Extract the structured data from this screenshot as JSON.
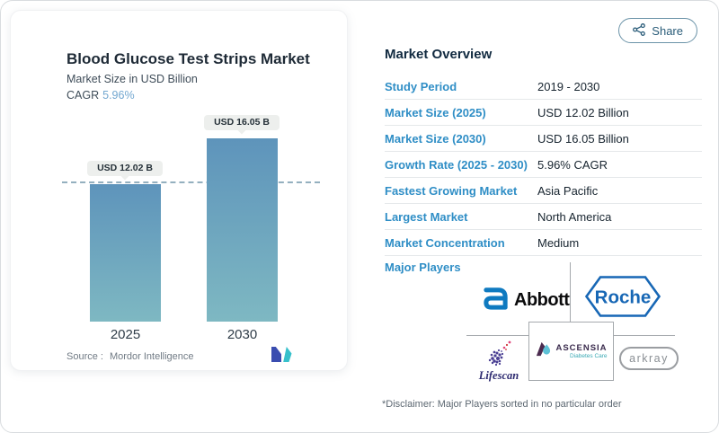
{
  "share": {
    "label": "Share"
  },
  "chart_card": {
    "title": "Blood Glucose Test Strips Market",
    "subtitle": "Market Size in USD Billion",
    "cagr_label": "CAGR",
    "cagr_value": "5.96%",
    "source_prefix": "Source :",
    "source_name": "Mordor Intelligence"
  },
  "chart_data": {
    "type": "bar",
    "title": "Blood Glucose Test Strips Market",
    "ylabel": "Market Size in USD Billion",
    "categories": [
      "2025",
      "2030"
    ],
    "values": [
      12.02,
      16.05
    ],
    "value_labels": [
      "USD 12.02 B",
      "USD 16.05 B"
    ],
    "reference_line": 12.02,
    "reference_line_style": "dashed",
    "bar_gradient_top": "#5e94bb",
    "bar_gradient_bottom": "#7eb8c2",
    "grid": false,
    "legend": false
  },
  "overview": {
    "heading": "Market Overview",
    "rows": [
      {
        "label": "Study Period",
        "value": "2019 - 2030"
      },
      {
        "label": "Market Size (2025)",
        "value": "USD 12.02 Billion"
      },
      {
        "label": "Market Size (2030)",
        "value": "USD 16.05 Billion"
      },
      {
        "label": "Growth Rate (2025 - 2030)",
        "value": "5.96% CAGR"
      },
      {
        "label": "Fastest Growing Market",
        "value": "Asia Pacific"
      },
      {
        "label": "Largest Market",
        "value": "North America"
      },
      {
        "label": "Market Concentration",
        "value": "Medium"
      }
    ],
    "major_players_label": "Major Players",
    "players": {
      "abbott": {
        "name": "Abbott"
      },
      "roche": {
        "name": "Roche"
      },
      "lifescan": {
        "name": "Lifescan"
      },
      "ascensia": {
        "name": "ASCENSIA",
        "subtitle": "Diabetes Care"
      },
      "arkray": {
        "name": "arkray"
      }
    },
    "disclaimer": "*Disclaimer: Major Players sorted in no particular order"
  },
  "colors": {
    "accent_label_blue": "#2f8ec6",
    "navy_text": "#17242f",
    "cagr_blue": "#72a7d0",
    "dashed_line": "#94b0bf",
    "pill_bg": "#edefed",
    "share_text": "#2a5c79",
    "roche_blue": "#1767b5",
    "abbott_blue": "#0f7ac0",
    "lifescan_purple": "#2d2a70",
    "ascensia_purple": "#3a2b4d",
    "arkray_gray": "#8a8f94",
    "mordor_indigo": "#3a4db0",
    "mordor_teal": "#36c0cb"
  }
}
